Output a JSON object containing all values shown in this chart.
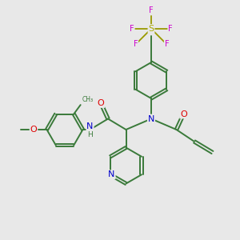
{
  "bg_color": "#e8e8e8",
  "bond_color": "#3a7a3a",
  "bond_width": 1.4,
  "atom_colors": {
    "O": "#dd0000",
    "N": "#0000cc",
    "S": "#aaaa00",
    "F": "#cc00cc",
    "C": "#3a7a3a"
  },
  "figsize": [
    3.0,
    3.0
  ],
  "dpi": 100,
  "xlim": [
    0,
    10
  ],
  "ylim": [
    0,
    10
  ]
}
